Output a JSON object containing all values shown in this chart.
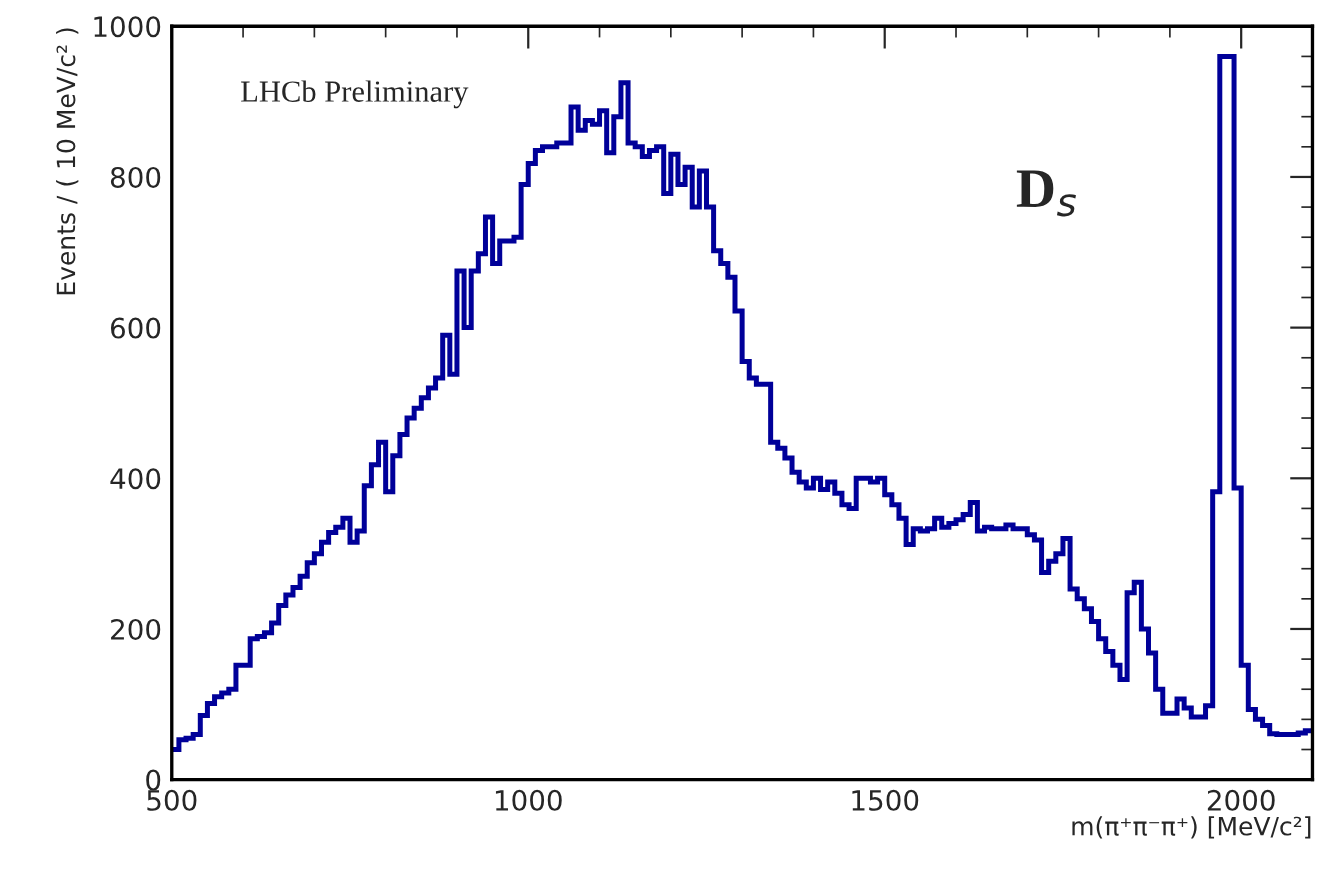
{
  "chart_data": {
    "type": "histogram",
    "xlabel": "m(π⁺π⁻π⁺) [MeV/c²]",
    "ylabel": "Events / ( 10 MeV/c² )",
    "annotations": [
      "LHCb Preliminary",
      "D$_{s}$"
    ],
    "bins": [
      500,
      510,
      520,
      530,
      540,
      550,
      560,
      570,
      580,
      590,
      600,
      610,
      620,
      630,
      640,
      650,
      660,
      670,
      680,
      690,
      700,
      710,
      720,
      730,
      740,
      750,
      760,
      770,
      780,
      790,
      800,
      810,
      820,
      830,
      840,
      850,
      860,
      870,
      880,
      890,
      900,
      910,
      920,
      930,
      940,
      950,
      960,
      970,
      980,
      990,
      1000,
      1010,
      1020,
      1030,
      1040,
      1050,
      1060,
      1070,
      1080,
      1090,
      1100,
      1110,
      1120,
      1130,
      1140,
      1150,
      1160,
      1170,
      1180,
      1190,
      1200,
      1210,
      1220,
      1230,
      1240,
      1250,
      1260,
      1270,
      1280,
      1290,
      1300,
      1310,
      1320,
      1330,
      1340,
      1350,
      1360,
      1370,
      1380,
      1390,
      1400,
      1410,
      1420,
      1430,
      1440,
      1450,
      1460,
      1470,
      1480,
      1490,
      1500,
      1510,
      1520,
      1530,
      1540,
      1550,
      1560,
      1570,
      1580,
      1590,
      1600,
      1610,
      1620,
      1630,
      1640,
      1650,
      1660,
      1670,
      1680,
      1690,
      1700,
      1710,
      1720,
      1730,
      1740,
      1750,
      1760,
      1770,
      1780,
      1790,
      1800,
      1810,
      1820,
      1830,
      1840,
      1850,
      1860,
      1870,
      1880,
      1890,
      1900,
      1910,
      1920,
      1930,
      1940,
      1950,
      1960,
      1970,
      1980,
      1990,
      2000,
      2010,
      2020,
      2030,
      2040,
      2050,
      2060,
      2070,
      2080,
      2090,
      2100
    ],
    "values": [
      40,
      53,
      55,
      60,
      85,
      101,
      110,
      115,
      120,
      152,
      152,
      187,
      190,
      195,
      208,
      231,
      245,
      255,
      270,
      288,
      300,
      315,
      328,
      335,
      347,
      315,
      330,
      390,
      418,
      448,
      382,
      430,
      458,
      480,
      493,
      507,
      520,
      533,
      590,
      538,
      675,
      600,
      675,
      698,
      747,
      685,
      715,
      715,
      720,
      790,
      818,
      835,
      840,
      840,
      845,
      845,
      893,
      862,
      875,
      870,
      888,
      832,
      880,
      925,
      845,
      840,
      827,
      835,
      840,
      778,
      830,
      790,
      813,
      760,
      808,
      760,
      702,
      685,
      667,
      622,
      555,
      533,
      525,
      525,
      448,
      440,
      427,
      408,
      395,
      387,
      400,
      385,
      395,
      380,
      365,
      360,
      400,
      400,
      395,
      400,
      378,
      365,
      347,
      312,
      333,
      330,
      333,
      347,
      335,
      340,
      345,
      352,
      368,
      330,
      335,
      333,
      333,
      338,
      333,
      333,
      325,
      318,
      275,
      290,
      300,
      320,
      253,
      240,
      227,
      210,
      187,
      170,
      152,
      133,
      248,
      262,
      200,
      168,
      120,
      88,
      88,
      107,
      95,
      83,
      83,
      98,
      382,
      960,
      960,
      387,
      152,
      93,
      80,
      72,
      61,
      60,
      60,
      60,
      62,
      65
    ],
    "color": "#000099",
    "xlim": [
      500,
      2100
    ],
    "ylim": [
      0,
      1000
    ],
    "xticks": [
      500,
      1000,
      1500,
      2000
    ],
    "yticks": [
      0,
      200,
      400,
      600,
      800,
      1000
    ],
    "grid": false
  }
}
